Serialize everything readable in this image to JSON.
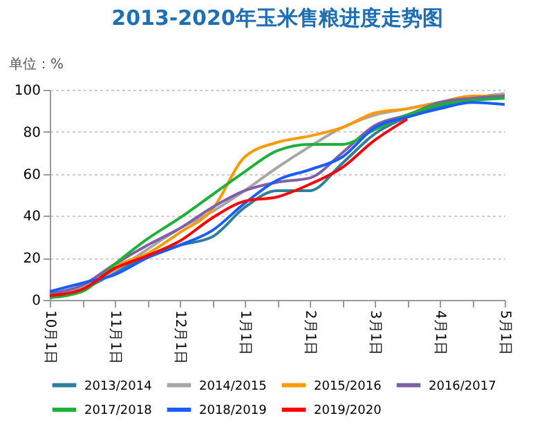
{
  "chart_data": {
    "type": "line",
    "title": "2013-2020年玉米售粮进度走势图",
    "ylabel": "单位：%",
    "categories": [
      "10月1日",
      null,
      "11月1日",
      null,
      "12月1日",
      null,
      "1月1日",
      null,
      "2月1日",
      null,
      "3月1日",
      null,
      "4月1日",
      null,
      "5月1日"
    ],
    "ylim": [
      0,
      100
    ],
    "yticks": [
      0,
      20,
      40,
      60,
      80,
      100
    ],
    "grid": "y",
    "legend": "bottom",
    "marker": "none",
    "line_style": "solid",
    "series": [
      {
        "name": "2013/2014",
        "color": "#2e7f99",
        "values": [
          2,
          5,
          13,
          21,
          26,
          30,
          44,
          52,
          52,
          65,
          79,
          87,
          92,
          96,
          98
        ]
      },
      {
        "name": "2014/2015",
        "color": "#a6a6a6",
        "values": [
          2,
          6,
          14,
          24,
          34,
          42,
          52,
          63,
          73,
          82,
          88,
          91,
          94,
          96,
          98
        ]
      },
      {
        "name": "2015/2016",
        "color": "#ff9900",
        "values": [
          2,
          5,
          16,
          22,
          32,
          43,
          68,
          75,
          78,
          82,
          89,
          91,
          94,
          97,
          97
        ]
      },
      {
        "name": "2016/2017",
        "color": "#7f5fa8",
        "values": [
          3,
          7,
          17,
          26,
          34,
          44,
          52,
          56,
          58,
          70,
          83,
          88,
          94,
          96,
          97
        ]
      },
      {
        "name": "2017/2018",
        "color": "#1fb03a",
        "values": [
          1,
          4,
          17,
          29,
          39,
          50,
          61,
          71,
          74,
          74,
          81,
          88,
          93,
          95,
          96
        ]
      },
      {
        "name": "2018/2019",
        "color": "#1a5cff",
        "values": [
          4,
          8,
          12,
          20,
          26,
          33,
          46,
          57,
          62,
          68,
          82,
          87,
          91,
          94,
          93
        ]
      },
      {
        "name": "2019/2020",
        "color": "#ff0000",
        "values": [
          2,
          5,
          15,
          21,
          28,
          39,
          47,
          49,
          55,
          63,
          76,
          86,
          null,
          null,
          null
        ]
      }
    ]
  }
}
